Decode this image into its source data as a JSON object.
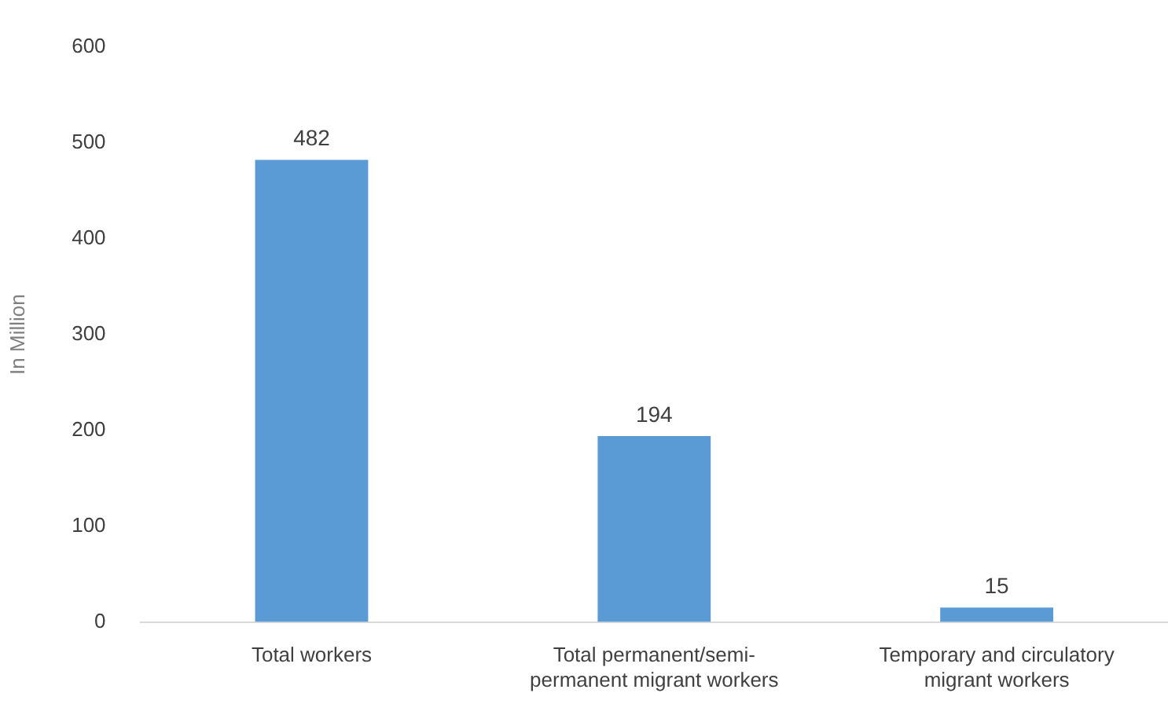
{
  "chart_data": {
    "type": "bar",
    "ylabel": "In Million",
    "categories": [
      "Total workers",
      "Total permanent/semi-permanent migrant workers",
      "Temporary and circulatory migrant workers"
    ],
    "values": [
      482,
      194,
      15
    ],
    "color": "#5b9bd5",
    "ylim": [
      0,
      600
    ],
    "yticks": [
      0,
      100,
      200,
      300,
      400,
      500,
      600
    ],
    "grid": false,
    "legend": false,
    "data_labels": true
  }
}
